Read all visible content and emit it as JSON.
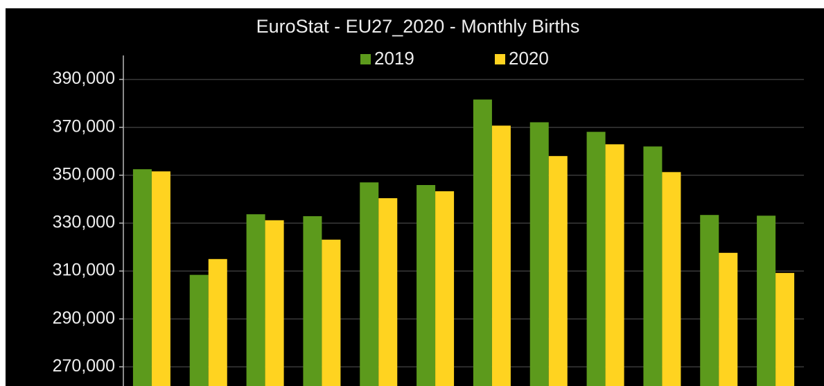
{
  "chart_data": {
    "type": "bar",
    "title": "EuroStat - EU27_2020 - Monthly Births",
    "categories": [
      null,
      null,
      null,
      null,
      null,
      null,
      null,
      null,
      null,
      null,
      null,
      null
    ],
    "series": [
      {
        "name": "2019",
        "color": "#5c9a1c",
        "values": [
          352500,
          308400,
          333700,
          332900,
          347000,
          345900,
          381600,
          372100,
          368100,
          362000,
          333400,
          333100
        ]
      },
      {
        "name": "2020",
        "color": "#ffd320",
        "values": [
          351600,
          315000,
          331200,
          323100,
          340400,
          343300,
          370700,
          358000,
          362900,
          351300,
          317600,
          309200
        ]
      }
    ],
    "ylim": [
      262000,
      400000
    ],
    "yticks": [
      {
        "value": 270000,
        "label": "270,000"
      },
      {
        "value": 290000,
        "label": "290,000"
      },
      {
        "value": 310000,
        "label": "310,000"
      },
      {
        "value": 330000,
        "label": "330,000"
      },
      {
        "value": 350000,
        "label": "350,000"
      },
      {
        "value": 370000,
        "label": "370,000"
      },
      {
        "value": 390000,
        "label": "390,000"
      }
    ],
    "grid": true,
    "legend": "top"
  }
}
